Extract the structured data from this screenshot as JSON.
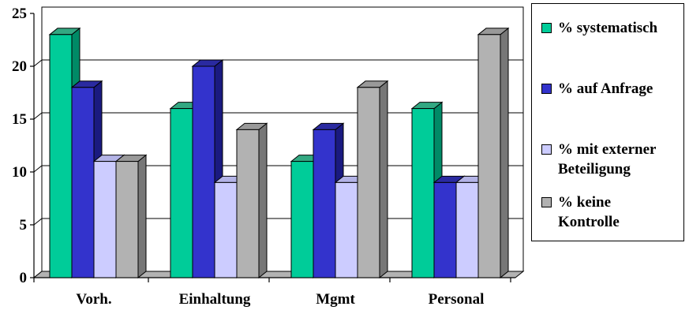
{
  "chart_data": {
    "type": "bar",
    "categories": [
      "Vorh.",
      "Einhaltung",
      "Mgmt",
      "Personal"
    ],
    "series": [
      {
        "name": "% systematisch",
        "values": [
          23,
          16,
          11,
          16
        ],
        "color": "#00CC99",
        "side": "#008A66",
        "top": "#33A882"
      },
      {
        "name": "% auf Anfrage",
        "values": [
          18,
          20,
          14,
          9
        ],
        "color": "#3333CC",
        "side": "#1A1A80",
        "top": "#2A2AA0"
      },
      {
        "name": "% mit externer\nBeteiligung",
        "values": [
          11,
          9,
          9,
          9
        ],
        "color": "#CCCCFF",
        "side": "#9999CC",
        "top": "#B3B3E6"
      },
      {
        "name": "% keine\nKontrolle",
        "values": [
          11,
          14,
          18,
          23
        ],
        "color": "#B2B2B2",
        "side": "#777777",
        "top": "#999999"
      }
    ],
    "yticks": [
      "0",
      "5",
      "10",
      "15",
      "20",
      "25"
    ],
    "ylim": [
      0,
      25
    ],
    "grid": true,
    "legend_position": "right"
  }
}
